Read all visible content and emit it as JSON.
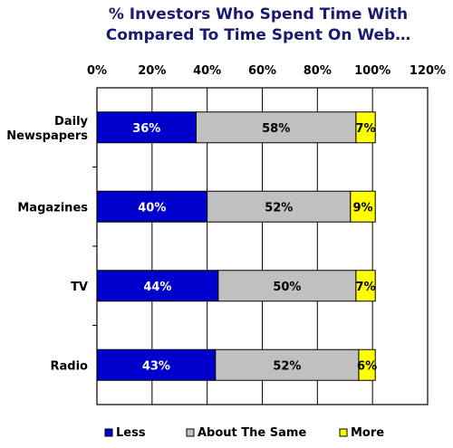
{
  "chart_data": {
    "type": "bar",
    "orientation": "horizontal",
    "stacked": true,
    "title_lines": [
      "% Investors Who Spend Time With",
      "Compared To Time Spent On Web…"
    ],
    "x_ticks": [
      "0%",
      "20%",
      "40%",
      "60%",
      "80%",
      "100%",
      "120%"
    ],
    "xlim": [
      0,
      120
    ],
    "grid": "vertical",
    "categories": [
      "Daily Newspapers",
      "Magazines",
      "TV",
      "Radio"
    ],
    "series": [
      {
        "name": "Less",
        "values": [
          36,
          40,
          44,
          43
        ],
        "labels": [
          "36%",
          "40%",
          "44%",
          "43%"
        ],
        "color": "#0000cc",
        "label_color": "#ffffff"
      },
      {
        "name": "About The Same",
        "values": [
          58,
          52,
          50,
          52
        ],
        "labels": [
          "58%",
          "52%",
          "50%",
          "52%"
        ],
        "color": "#c0c0c0",
        "label_color": "#000000"
      },
      {
        "name": "More",
        "values": [
          7,
          9,
          7,
          6
        ],
        "labels": [
          "7%",
          "9%",
          "7%",
          "6%"
        ],
        "color": "#ffff00",
        "label_color": "#000000"
      }
    ],
    "legend_position": "bottom"
  }
}
